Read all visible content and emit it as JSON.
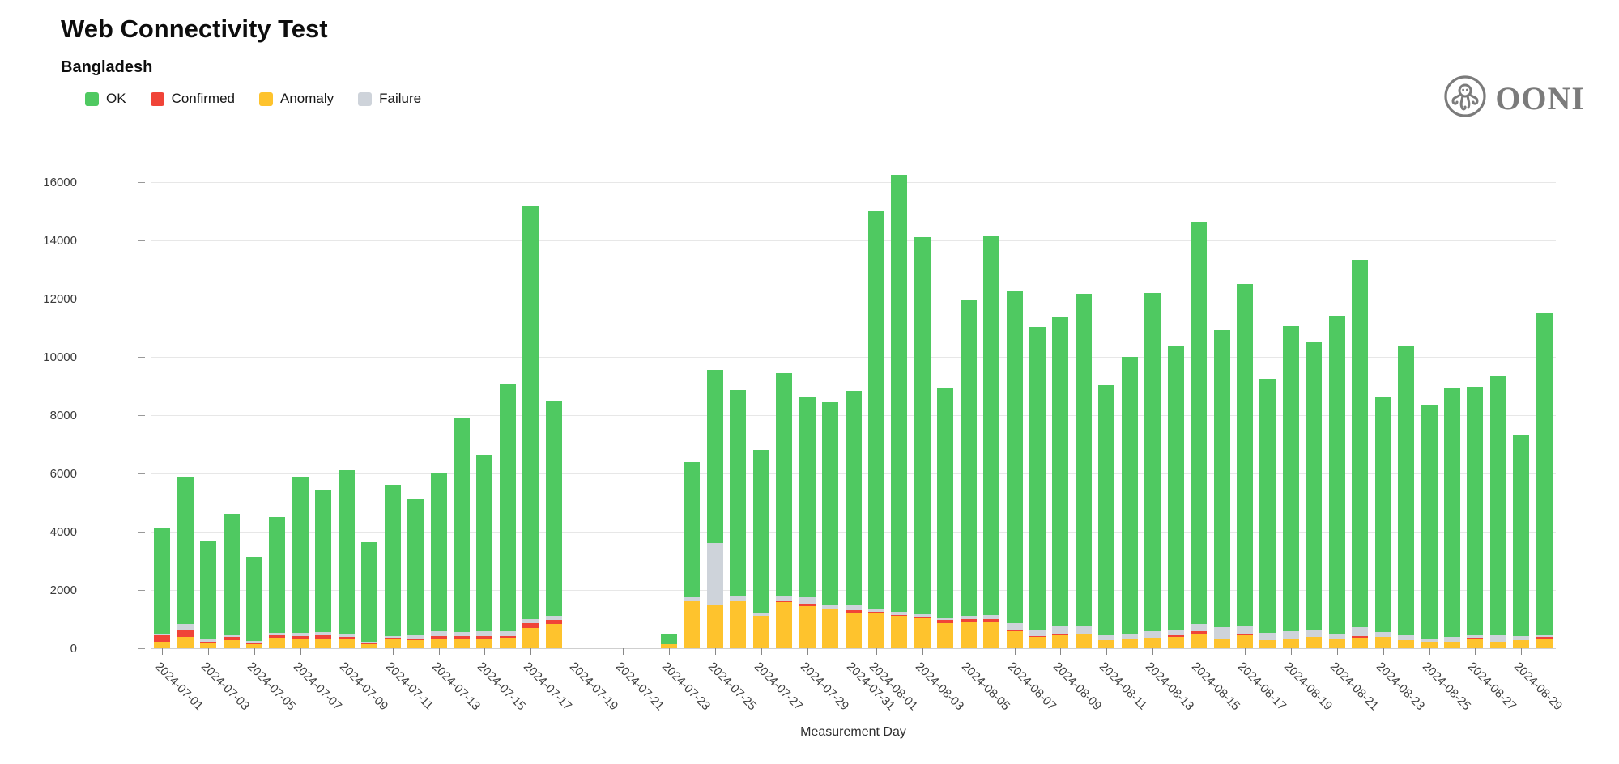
{
  "header": {
    "title": "Web Connectivity Test",
    "subtitle": "Bangladesh"
  },
  "logo": {
    "text": "OONI",
    "emblem": "ooni-octopus-icon",
    "color": "#7b7b7b"
  },
  "legend": [
    {
      "label": "OK",
      "color": "#4fc961"
    },
    {
      "label": "Confirmed",
      "color": "#f04438"
    },
    {
      "label": "Anomaly",
      "color": "#fec32d"
    },
    {
      "label": "Failure",
      "color": "#ced3da"
    }
  ],
  "chart_data": {
    "type": "bar",
    "stacked": true,
    "title": "Web Connectivity Test",
    "subtitle": "Bangladesh",
    "xlabel": "Measurement Day",
    "ylabel": "",
    "ylim": [
      0,
      16000
    ],
    "yticks": [
      0,
      2000,
      4000,
      6000,
      8000,
      10000,
      12000,
      14000,
      16000
    ],
    "grid": true,
    "legend_position": "top-left",
    "x_label_rotation_deg": 45,
    "x_labeled_days": "odd days of each month",
    "categories": [
      "2024-07-01",
      "2024-07-02",
      "2024-07-03",
      "2024-07-04",
      "2024-07-05",
      "2024-07-06",
      "2024-07-07",
      "2024-07-08",
      "2024-07-09",
      "2024-07-10",
      "2024-07-11",
      "2024-07-12",
      "2024-07-13",
      "2024-07-14",
      "2024-07-15",
      "2024-07-16",
      "2024-07-17",
      "2024-07-18",
      "2024-07-19",
      "2024-07-20",
      "2024-07-21",
      "2024-07-22",
      "2024-07-23",
      "2024-07-24",
      "2024-07-25",
      "2024-07-26",
      "2024-07-27",
      "2024-07-28",
      "2024-07-29",
      "2024-07-30",
      "2024-07-31",
      "2024-08-01",
      "2024-08-02",
      "2024-08-03",
      "2024-08-04",
      "2024-08-05",
      "2024-08-06",
      "2024-08-07",
      "2024-08-08",
      "2024-08-09",
      "2024-08-10",
      "2024-08-11",
      "2024-08-12",
      "2024-08-13",
      "2024-08-14",
      "2024-08-15",
      "2024-08-16",
      "2024-08-17",
      "2024-08-18",
      "2024-08-19",
      "2024-08-20",
      "2024-08-21",
      "2024-08-22",
      "2024-08-23",
      "2024-08-24",
      "2024-08-25",
      "2024-08-26",
      "2024-08-27",
      "2024-08-28",
      "2024-08-29",
      "2024-08-30"
    ],
    "series": [
      {
        "name": "Anomaly",
        "color": "#fec32d",
        "stack_order": 1,
        "values": [
          230,
          400,
          170,
          290,
          140,
          350,
          300,
          330,
          330,
          130,
          300,
          270,
          330,
          330,
          330,
          370,
          700,
          820,
          0,
          0,
          0,
          0,
          150,
          1600,
          1460,
          1600,
          1100,
          1575,
          1440,
          1350,
          1230,
          1190,
          1110,
          1050,
          860,
          910,
          900,
          570,
          400,
          450,
          490,
          290,
          300,
          350,
          400,
          510,
          310,
          450,
          290,
          325,
          400,
          310,
          370,
          400,
          290,
          215,
          230,
          310,
          230,
          290,
          310
        ]
      },
      {
        "name": "Confirmed",
        "color": "#f04438",
        "stack_order": 2,
        "values": [
          215,
          205,
          60,
          110,
          55,
          100,
          120,
          150,
          60,
          60,
          50,
          60,
          100,
          90,
          80,
          60,
          150,
          140,
          0,
          0,
          0,
          0,
          0,
          0,
          0,
          0,
          0,
          75,
          85,
          0,
          90,
          60,
          30,
          30,
          110,
          90,
          100,
          80,
          30,
          60,
          0,
          0,
          0,
          0,
          70,
          60,
          30,
          60,
          0,
          0,
          0,
          0,
          60,
          0,
          0,
          0,
          0,
          60,
          0,
          0,
          70
        ]
      },
      {
        "name": "Failure",
        "color": "#ced3da",
        "stack_order": 3,
        "values": [
          65,
          230,
          70,
          75,
          50,
          80,
          100,
          80,
          100,
          40,
          80,
          150,
          150,
          150,
          180,
          150,
          150,
          140,
          0,
          0,
          0,
          0,
          0,
          150,
          2150,
          190,
          90,
          160,
          215,
          160,
          145,
          125,
          120,
          100,
          95,
          120,
          150,
          200,
          200,
          240,
          280,
          160,
          190,
          230,
          130,
          250,
          380,
          280,
          250,
          260,
          210,
          200,
          290,
          160,
          160,
          120,
          170,
          100,
          215,
          130,
          100
        ]
      },
      {
        "name": "OK",
        "color": "#4fc961",
        "stack_order": 4,
        "values": [
          3640,
          5065,
          3400,
          4125,
          2905,
          3970,
          5380,
          4890,
          5610,
          3420,
          5170,
          4670,
          5420,
          7330,
          6060,
          8470,
          14200,
          7400,
          0,
          0,
          0,
          0,
          350,
          4650,
          5940,
          7060,
          5610,
          7640,
          6860,
          6940,
          7365,
          13625,
          14990,
          12920,
          7865,
          10830,
          13000,
          11420,
          10390,
          10600,
          11400,
          8580,
          9510,
          11610,
          9750,
          13830,
          10210,
          11710,
          8720,
          10480,
          9880,
          10890,
          12605,
          8080,
          9950,
          8015,
          8530,
          8500,
          8925,
          6895,
          11020
        ]
      }
    ],
    "totals": [
      4150,
      5900,
      3700,
      4600,
      3150,
      4500,
      5900,
      5450,
      6100,
      3650,
      5600,
      5150,
      6000,
      7900,
      6650,
      9050,
      15200,
      8500,
      0,
      0,
      0,
      0,
      500,
      6400,
      9550,
      8850,
      6800,
      9450,
      8600,
      8450,
      8830,
      15000,
      16250,
      14100,
      8930,
      11950,
      14150,
      12270,
      11020,
      11350,
      12170,
      9030,
      10000,
      12190,
      10350,
      14650,
      10930,
      12500,
      9260,
      11065,
      10490,
      11400,
      13325,
      8640,
      10400,
      8350,
      8930,
      8970,
      9370,
      7315,
      11500
    ]
  }
}
